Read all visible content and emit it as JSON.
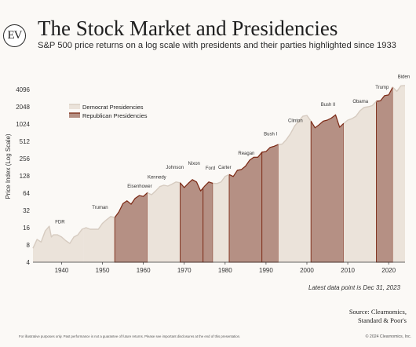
{
  "brand": {
    "logo_text": "EV"
  },
  "header": {
    "title": "The Stock Market and Presidencies",
    "subtitle": "S&P 500 price returns on a log scale with presidents and their parties highlighted since 1933"
  },
  "footer": {
    "data_note": "Latest data point is Dec 31, 2023",
    "source_line1": "Source: Clearnomics,",
    "source_line2": "Standard & Poor's",
    "disclaimer": "For illustrative purposes only. Past performance is not a guarantee of future returns. Please see important disclosures at the end of this presentation.",
    "copyright": "© 2024 Clearnomics, Inc."
  },
  "colors": {
    "democrat_fill": "#ebe3da",
    "democrat_line": "#d6cbc0",
    "republican_fill": "#b59084",
    "republican_line": "#7d2b17",
    "axis": "#333333",
    "background": "#fbf9f6"
  },
  "chart_data": {
    "type": "area",
    "scale": "log2",
    "ylabel": "Price Index (Log Scale)",
    "xlabel": "",
    "xlim": [
      1933,
      2024
    ],
    "ylim": [
      4,
      4096
    ],
    "x_ticks": [
      1940,
      1950,
      1960,
      1970,
      1980,
      1990,
      2000,
      2010,
      2020
    ],
    "y_ticks": [
      4,
      8,
      16,
      32,
      64,
      128,
      256,
      512,
      1024,
      2048,
      4096
    ],
    "legend": {
      "position": "top-left",
      "entries": [
        {
          "name": "Democrat Presidencies",
          "party": "D"
        },
        {
          "name": "Republican Presidencies",
          "party": "R"
        }
      ]
    },
    "series": {
      "x": [
        1933,
        1934,
        1935,
        1936,
        1937,
        1937.5,
        1938,
        1939,
        1940,
        1941,
        1942,
        1943,
        1944,
        1945,
        1946,
        1947,
        1948,
        1949,
        1950,
        1951,
        1952,
        1953,
        1954,
        1955,
        1956,
        1957,
        1958,
        1959,
        1960,
        1961,
        1962,
        1963,
        1964,
        1965,
        1966,
        1967,
        1968,
        1969,
        1970,
        1971,
        1972,
        1973,
        1974,
        1975,
        1976,
        1977,
        1978,
        1979,
        1980,
        1981,
        1982,
        1983,
        1984,
        1985,
        1986,
        1987,
        1988,
        1989,
        1990,
        1991,
        1992,
        1993,
        1994,
        1995,
        1996,
        1997,
        1998,
        1999,
        2000,
        2001,
        2002,
        2003,
        2004,
        2005,
        2006,
        2007,
        2008,
        2009,
        2010,
        2011,
        2012,
        2013,
        2014,
        2015,
        2016,
        2017,
        2018,
        2019,
        2020,
        2021,
        2022,
        2023,
        2024
      ],
      "y": [
        7,
        10,
        9,
        14,
        17,
        11,
        12,
        12,
        11,
        9.5,
        8.5,
        11,
        12,
        15,
        16,
        15,
        15,
        15,
        19,
        22,
        25,
        24,
        30,
        42,
        47,
        41,
        52,
        58,
        56,
        65,
        60,
        70,
        83,
        88,
        85,
        92,
        100,
        97,
        80,
        95,
        110,
        100,
        70,
        85,
        100,
        95,
        94,
        100,
        125,
        135,
        125,
        160,
        165,
        190,
        240,
        270,
        270,
        330,
        340,
        400,
        420,
        450,
        460,
        550,
        700,
        950,
        1150,
        1400,
        1450,
        1150,
        880,
        1000,
        1150,
        1200,
        1300,
        1480,
        900,
        1050,
        1200,
        1270,
        1400,
        1750,
        2000,
        2050,
        2150,
        2550,
        2600,
        3200,
        3300,
        4500,
        3800,
        4750,
        4800
      ]
    },
    "presidencies": [
      {
        "name": "FDR",
        "party": "D",
        "start": 1933,
        "end": 1945.3
      },
      {
        "name": "Truman",
        "party": "D",
        "start": 1945.3,
        "end": 1953
      },
      {
        "name": "Eisenhower",
        "party": "R",
        "start": 1953,
        "end": 1961
      },
      {
        "name": "Kennedy",
        "party": "D",
        "start": 1961,
        "end": 1963.9
      },
      {
        "name": "Johnson",
        "party": "D",
        "start": 1963.9,
        "end": 1969
      },
      {
        "name": "Nixon",
        "party": "R",
        "start": 1969,
        "end": 1974.6
      },
      {
        "name": "Ford",
        "party": "R",
        "start": 1974.6,
        "end": 1977
      },
      {
        "name": "Carter",
        "party": "D",
        "start": 1977,
        "end": 1981
      },
      {
        "name": "Reagan",
        "party": "R",
        "start": 1981,
        "end": 1989
      },
      {
        "name": "Bush I",
        "party": "R",
        "start": 1989,
        "end": 1993
      },
      {
        "name": "Clinton",
        "party": "D",
        "start": 1993,
        "end": 2001
      },
      {
        "name": "Bush II",
        "party": "R",
        "start": 2001,
        "end": 2009
      },
      {
        "name": "Obama",
        "party": "D",
        "start": 2009,
        "end": 2017
      },
      {
        "name": "Trump",
        "party": "R",
        "start": 2017,
        "end": 2021
      },
      {
        "name": "Biden",
        "party": "D",
        "start": 2021,
        "end": 2024
      }
    ],
    "annotations": [
      {
        "text": "FDR",
        "x": 1939.6,
        "y": 19
      },
      {
        "text": "Truman",
        "x": 1949.4,
        "y": 34
      },
      {
        "text": "Eisenhower",
        "x": 1959.1,
        "y": 80
      },
      {
        "text": "Kennedy",
        "x": 1963.3,
        "y": 115
      },
      {
        "text": "Johnson",
        "x": 1967.7,
        "y": 170
      },
      {
        "text": "Nixon",
        "x": 1972.4,
        "y": 200
      },
      {
        "text": "Ford",
        "x": 1976.4,
        "y": 165
      },
      {
        "text": "Carter",
        "x": 1979.9,
        "y": 170
      },
      {
        "text": "Reagan",
        "x": 1985.2,
        "y": 300
      },
      {
        "text": "Bush I",
        "x": 1991.1,
        "y": 650
      },
      {
        "text": "Clinton",
        "x": 1997.2,
        "y": 1100
      },
      {
        "text": "Bush II",
        "x": 2005.2,
        "y": 2100
      },
      {
        "text": "Obama",
        "x": 2013.1,
        "y": 2400
      },
      {
        "text": "Trump",
        "x": 2018.4,
        "y": 4200
      },
      {
        "text": "Biden",
        "x": 2023.7,
        "y": 6500
      }
    ]
  }
}
